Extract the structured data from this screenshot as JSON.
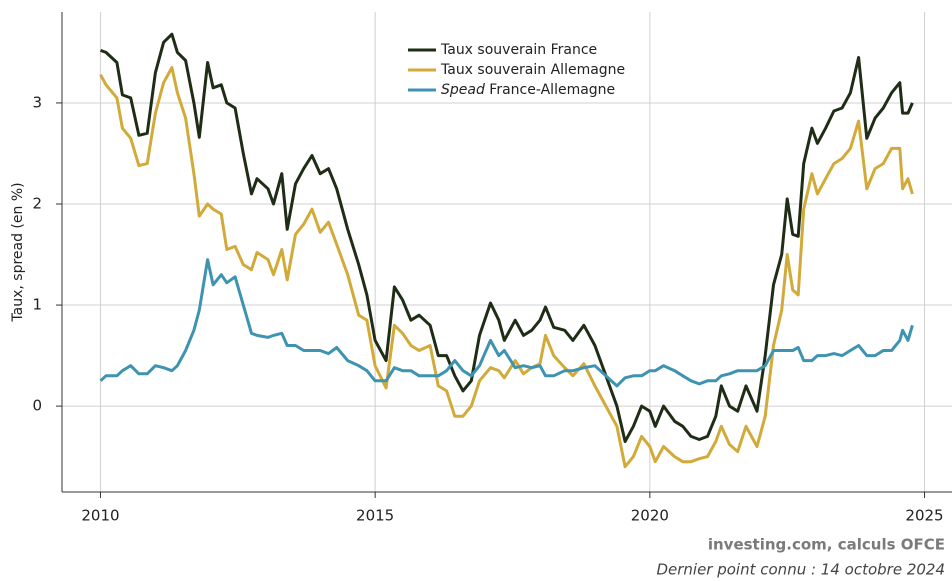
{
  "chart_data": {
    "type": "line",
    "y_label": "Taux, spread (en %)",
    "source": "investing.com, calculs OFCE",
    "note": "Dernier point connu : 14 octobre 2024",
    "xlim": [
      2009.3,
      2025.5
    ],
    "xticks": [
      2010,
      2015,
      2020,
      2025
    ],
    "ylim": [
      -0.85,
      3.9
    ],
    "yticks": [
      0,
      1,
      2,
      3
    ],
    "grid": true,
    "legend": "top",
    "x": [
      2010.0,
      2010.1,
      2010.3,
      2010.4,
      2010.55,
      2010.7,
      2010.85,
      2011.0,
      2011.15,
      2011.3,
      2011.4,
      2011.55,
      2011.7,
      2011.8,
      2011.95,
      2012.05,
      2012.2,
      2012.3,
      2012.45,
      2012.6,
      2012.75,
      2012.85,
      2013.05,
      2013.15,
      2013.3,
      2013.4,
      2013.55,
      2013.7,
      2013.85,
      2014.0,
      2014.15,
      2014.3,
      2014.5,
      2014.7,
      2014.85,
      2015.0,
      2015.2,
      2015.35,
      2015.5,
      2015.65,
      2015.8,
      2016.0,
      2016.15,
      2016.3,
      2016.45,
      2016.6,
      2016.75,
      2016.9,
      2017.1,
      2017.25,
      2017.35,
      2017.55,
      2017.7,
      2017.85,
      2018.0,
      2018.1,
      2018.25,
      2018.45,
      2018.6,
      2018.8,
      2019.0,
      2019.2,
      2019.4,
      2019.55,
      2019.7,
      2019.85,
      2020.0,
      2020.1,
      2020.25,
      2020.45,
      2020.6,
      2020.75,
      2020.9,
      2021.05,
      2021.2,
      2021.3,
      2021.45,
      2021.6,
      2021.75,
      2021.95,
      2022.1,
      2022.25,
      2022.4,
      2022.5,
      2022.6,
      2022.7,
      2022.8,
      2022.95,
      2023.05,
      2023.2,
      2023.35,
      2023.5,
      2023.65,
      2023.8,
      2023.95,
      2024.1,
      2024.25,
      2024.4,
      2024.55,
      2024.6,
      2024.7,
      2024.78
    ],
    "series": [
      {
        "name": "Taux souverain France",
        "color": "#1f2d16",
        "values": [
          3.52,
          3.5,
          3.4,
          3.08,
          3.05,
          2.68,
          2.7,
          3.3,
          3.6,
          3.68,
          3.5,
          3.42,
          3.0,
          2.66,
          3.4,
          3.15,
          3.18,
          3.0,
          2.95,
          2.5,
          2.1,
          2.25,
          2.15,
          2.0,
          2.3,
          1.75,
          2.2,
          2.35,
          2.48,
          2.3,
          2.35,
          2.15,
          1.75,
          1.4,
          1.1,
          0.65,
          0.45,
          1.18,
          1.05,
          0.85,
          0.9,
          0.8,
          0.5,
          0.5,
          0.3,
          0.15,
          0.25,
          0.7,
          1.02,
          0.85,
          0.65,
          0.85,
          0.7,
          0.75,
          0.85,
          0.98,
          0.78,
          0.75,
          0.65,
          0.8,
          0.6,
          0.3,
          0.0,
          -0.35,
          -0.2,
          0.0,
          -0.05,
          -0.2,
          0.0,
          -0.15,
          -0.2,
          -0.3,
          -0.33,
          -0.3,
          -0.1,
          0.2,
          0.0,
          -0.05,
          0.2,
          -0.05,
          0.5,
          1.2,
          1.5,
          2.05,
          1.7,
          1.68,
          2.4,
          2.75,
          2.6,
          2.75,
          2.92,
          2.95,
          3.1,
          3.45,
          2.65,
          2.85,
          2.95,
          3.1,
          3.2,
          2.9,
          2.9,
          3.0
        ]
      },
      {
        "name": "Taux souverain Allemagne",
        "color": "#d2aa3a",
        "values": [
          3.28,
          3.18,
          3.05,
          2.75,
          2.65,
          2.38,
          2.4,
          2.9,
          3.2,
          3.35,
          3.1,
          2.85,
          2.3,
          1.88,
          2.0,
          1.95,
          1.9,
          1.55,
          1.58,
          1.4,
          1.35,
          1.52,
          1.45,
          1.3,
          1.55,
          1.25,
          1.7,
          1.8,
          1.95,
          1.72,
          1.82,
          1.6,
          1.3,
          0.9,
          0.85,
          0.4,
          0.18,
          0.8,
          0.72,
          0.6,
          0.55,
          0.6,
          0.2,
          0.15,
          -0.1,
          -0.1,
          0.0,
          0.25,
          0.38,
          0.35,
          0.28,
          0.45,
          0.32,
          0.38,
          0.42,
          0.7,
          0.5,
          0.38,
          0.3,
          0.42,
          0.2,
          0.0,
          -0.2,
          -0.6,
          -0.5,
          -0.3,
          -0.4,
          -0.55,
          -0.4,
          -0.5,
          -0.55,
          -0.55,
          -0.52,
          -0.5,
          -0.35,
          -0.2,
          -0.38,
          -0.45,
          -0.2,
          -0.4,
          -0.1,
          0.6,
          0.95,
          1.5,
          1.15,
          1.1,
          1.95,
          2.3,
          2.1,
          2.25,
          2.4,
          2.45,
          2.55,
          2.82,
          2.15,
          2.35,
          2.4,
          2.55,
          2.55,
          2.15,
          2.25,
          2.1
        ]
      },
      {
        "name": "Spead France-Allemagne",
        "color": "#3d93b0",
        "values": [
          0.25,
          0.3,
          0.3,
          0.35,
          0.4,
          0.32,
          0.32,
          0.4,
          0.38,
          0.35,
          0.4,
          0.55,
          0.75,
          0.95,
          1.45,
          1.2,
          1.3,
          1.22,
          1.28,
          1.0,
          0.72,
          0.7,
          0.68,
          0.7,
          0.72,
          0.6,
          0.6,
          0.55,
          0.55,
          0.55,
          0.52,
          0.58,
          0.45,
          0.4,
          0.35,
          0.25,
          0.25,
          0.38,
          0.35,
          0.35,
          0.3,
          0.3,
          0.3,
          0.35,
          0.45,
          0.35,
          0.3,
          0.4,
          0.65,
          0.5,
          0.55,
          0.38,
          0.4,
          0.38,
          0.4,
          0.3,
          0.3,
          0.35,
          0.35,
          0.38,
          0.4,
          0.3,
          0.2,
          0.28,
          0.3,
          0.3,
          0.35,
          0.35,
          0.4,
          0.35,
          0.3,
          0.25,
          0.22,
          0.25,
          0.25,
          0.3,
          0.32,
          0.35,
          0.35,
          0.35,
          0.4,
          0.55,
          0.55,
          0.55,
          0.55,
          0.58,
          0.45,
          0.45,
          0.5,
          0.5,
          0.52,
          0.5,
          0.55,
          0.6,
          0.5,
          0.5,
          0.55,
          0.55,
          0.65,
          0.75,
          0.65,
          0.8
        ]
      }
    ]
  }
}
